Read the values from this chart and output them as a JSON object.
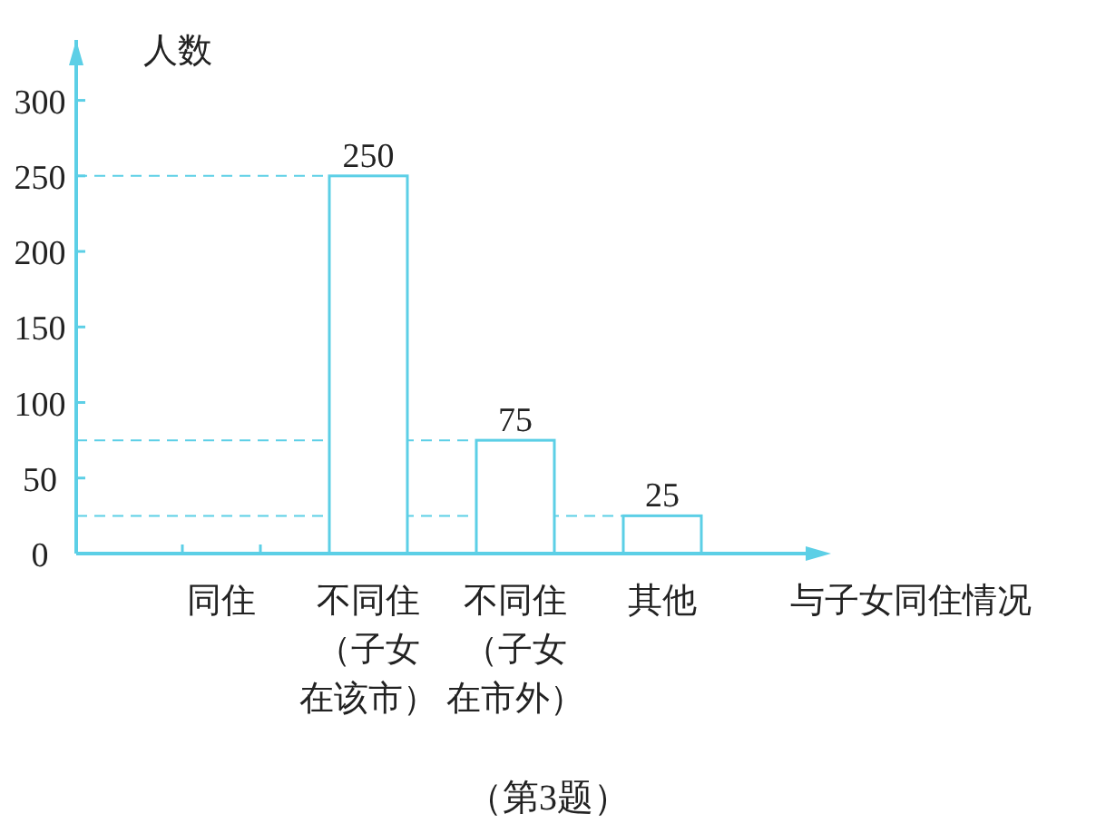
{
  "chart_data": {
    "type": "bar",
    "xlabel": "与子女同住情况",
    "ylabel": "人数",
    "categories": [
      "同住",
      "不同住（子女在该市）",
      "不同住（子女在市外）",
      "其他"
    ],
    "values": [
      null,
      250,
      75,
      25
    ],
    "color": "#5ccfe6",
    "data_labels": true,
    "ylim": [
      0,
      340
    ],
    "yticks": [
      0,
      50,
      100,
      150,
      200,
      250,
      300
    ],
    "ref_lines": [
      {
        "axis": "y",
        "value": 250,
        "line_style": "dashed"
      },
      {
        "axis": "y",
        "value": 75,
        "line_style": "dashed"
      },
      {
        "axis": "y",
        "value": 25,
        "line_style": "dashed"
      }
    ],
    "annotations": [
      "（第3题）"
    ]
  }
}
